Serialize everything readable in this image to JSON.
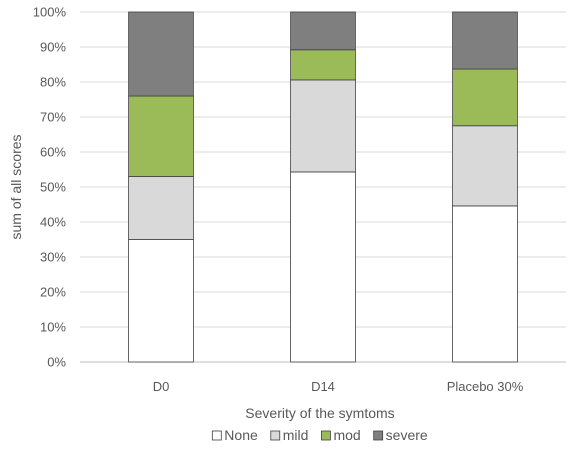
{
  "chart_data": {
    "type": "bar",
    "stacked": "percent",
    "categories": [
      "D0",
      "D14",
      "Placebo 30%"
    ],
    "series": [
      {
        "name": "None",
        "color": "#ffffff",
        "values": [
          35,
          54.3,
          44.6
        ]
      },
      {
        "name": "mild",
        "color": "#d9d9d9",
        "values": [
          18,
          26.3,
          22.9
        ]
      },
      {
        "name": "mod",
        "color": "#9bbb59",
        "values": [
          23,
          8.6,
          16.2
        ]
      },
      {
        "name": "severe",
        "color": "#7f7f7f",
        "values": [
          24,
          10.8,
          16.3
        ]
      }
    ],
    "xlabel": "Severity of the symtoms",
    "ylabel": "sum of all scores",
    "ylim": [
      0,
      100
    ],
    "yticks": [
      "0%",
      "10%",
      "20%",
      "30%",
      "40%",
      "50%",
      "60%",
      "70%",
      "80%",
      "90%",
      "100%"
    ],
    "grid": true,
    "legend_position": "bottom"
  }
}
